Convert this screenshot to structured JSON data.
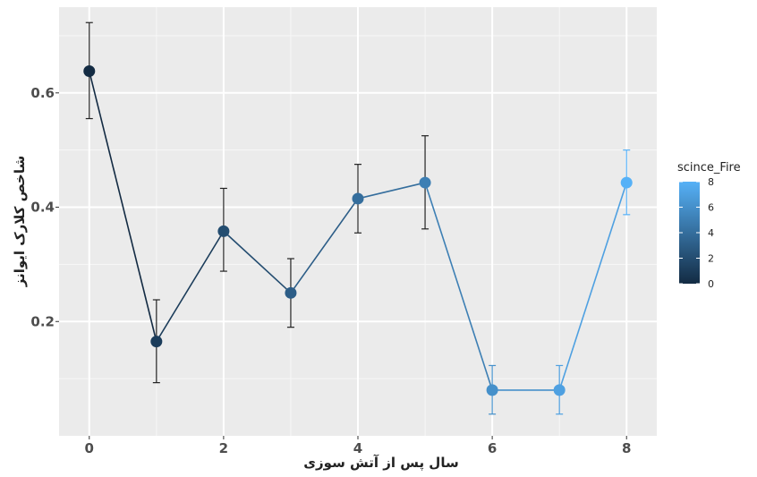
{
  "chart_data": {
    "type": "line",
    "xlabel": "سال پس از آتش سوزی",
    "ylabel": "شاخص کلارک ایوانز",
    "x_ticks": [
      0,
      2,
      4,
      6,
      8
    ],
    "y_ticks": [
      0.2,
      0.4,
      0.6
    ],
    "y_tick_labels": [
      "0.2",
      "0.4",
      "0.6"
    ],
    "xlim": [
      -0.45,
      8.45
    ],
    "ylim": [
      0.0,
      0.75
    ],
    "grid": true,
    "points": [
      {
        "x": 0,
        "y": 0.638,
        "ymin": 0.555,
        "ymax": 0.723,
        "color_value": 0
      },
      {
        "x": 1,
        "y": 0.165,
        "ymin": 0.093,
        "ymax": 0.238,
        "color_value": 1
      },
      {
        "x": 2,
        "y": 0.358,
        "ymin": 0.288,
        "ymax": 0.433,
        "color_value": 2
      },
      {
        "x": 3,
        "y": 0.25,
        "ymin": 0.19,
        "ymax": 0.31,
        "color_value": 3
      },
      {
        "x": 4,
        "y": 0.415,
        "ymin": 0.355,
        "ymax": 0.475,
        "color_value": 4
      },
      {
        "x": 5,
        "y": 0.443,
        "ymin": 0.362,
        "ymax": 0.525,
        "color_value": 5
      },
      {
        "x": 6,
        "y": 0.08,
        "ymin": 0.038,
        "ymax": 0.123,
        "color_value": 6
      },
      {
        "x": 7,
        "y": 0.08,
        "ymin": 0.038,
        "ymax": 0.123,
        "color_value": 7
      },
      {
        "x": 8,
        "y": 0.443,
        "ymin": 0.387,
        "ymax": 0.5,
        "color_value": 8
      }
    ],
    "legend": {
      "title": "scince_Fire",
      "placement": "right",
      "min": 0,
      "max": 8,
      "ticks": [
        0,
        2,
        4,
        6,
        8
      ]
    },
    "colors": {
      "low": "#132b43",
      "high": "#56b1f7",
      "panel": "#ebebeb",
      "grid_major": "#ffffff",
      "errorbar": "#222222"
    }
  }
}
